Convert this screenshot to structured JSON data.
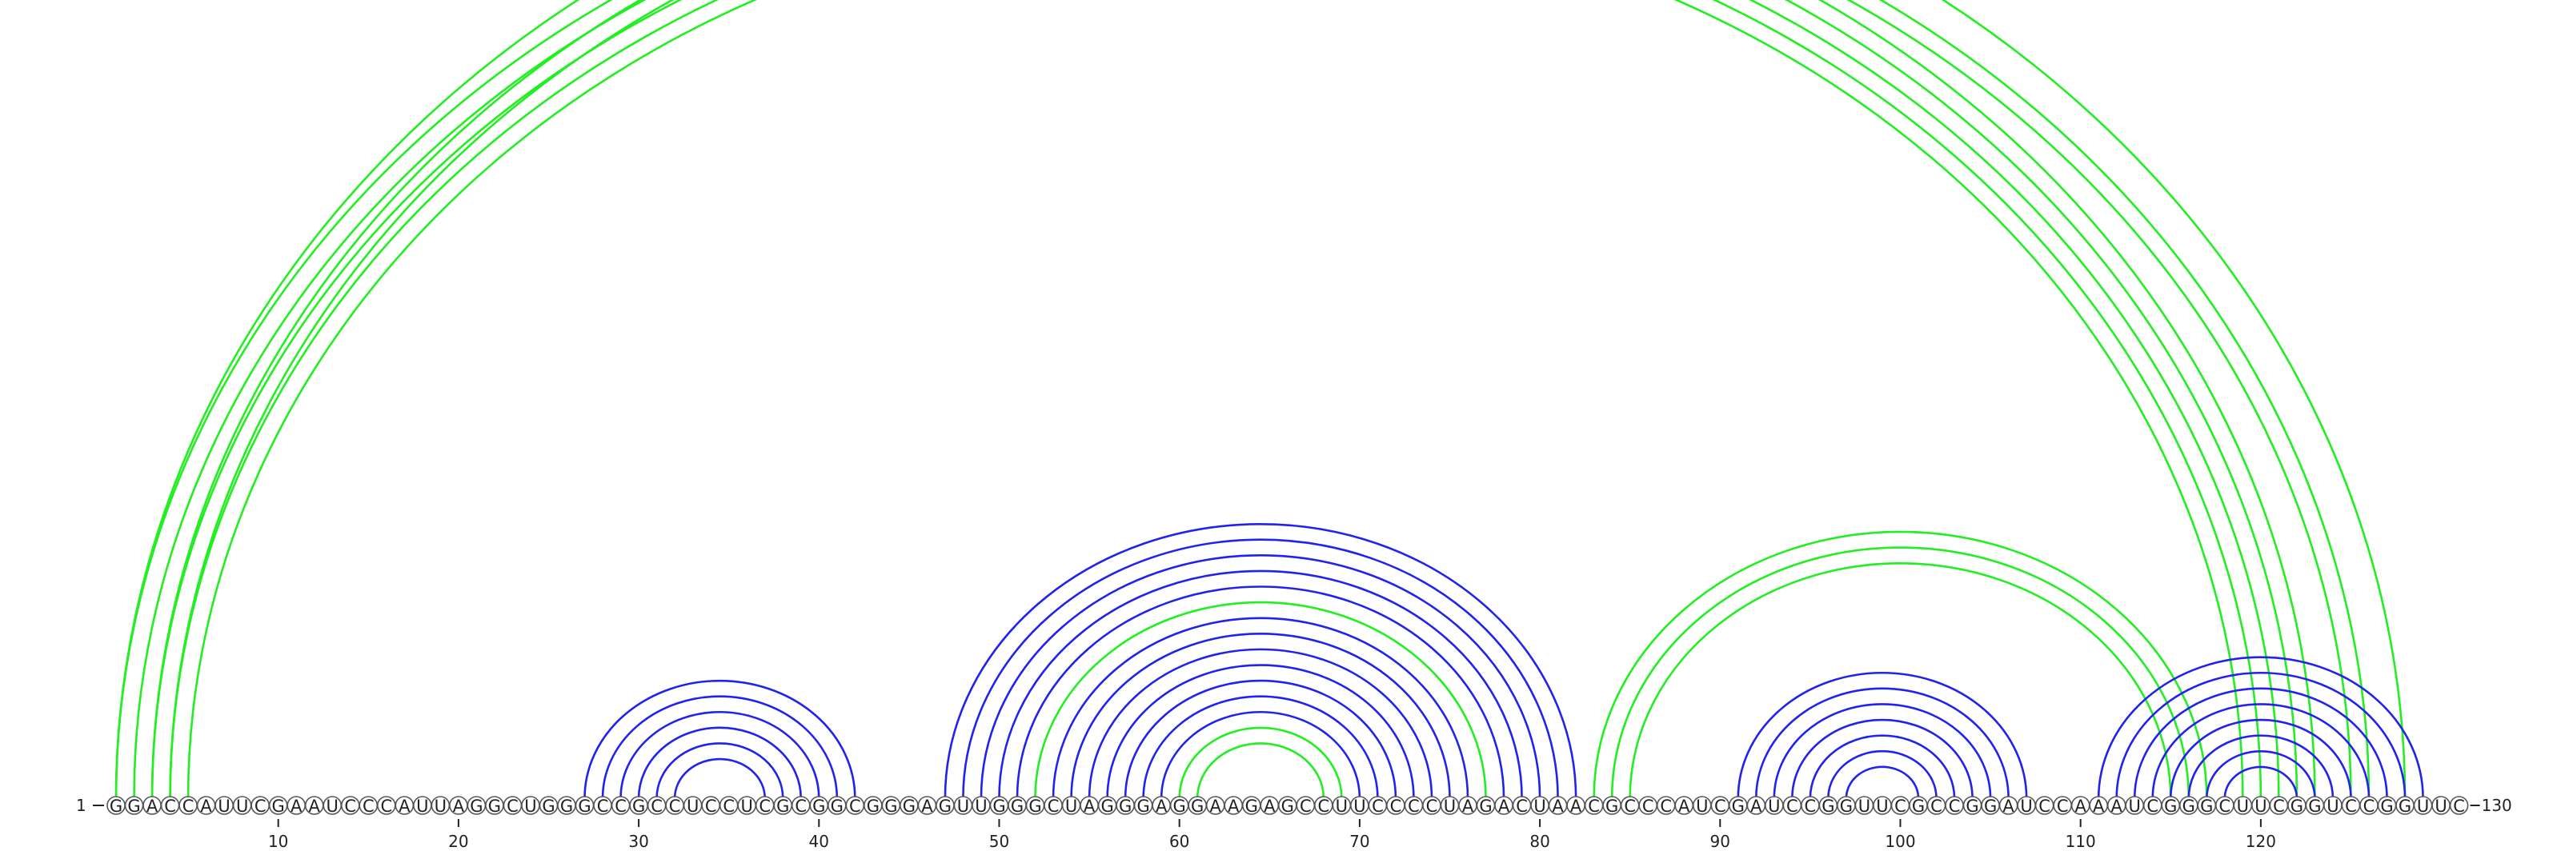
{
  "diagram": {
    "sequence": "GGACCAUUCGAAUCCCAUUAGGCUGGGCCGCCUCCUCGCGGCGGGAGUUGGGCUAGGGAGGAAGAGCCUUCCCCUAGACUAACGCCCAUCGAUCCGGUUCGCCGGAUCCAAAUCGGGCUUCGGUCCGGUUC",
    "start_label": "1",
    "end_label": "130",
    "ticks": [
      "10",
      "20",
      "30",
      "40",
      "50",
      "60",
      "70",
      "80",
      "90",
      "100",
      "110",
      "120"
    ],
    "colors": {
      "green": "#22ee22",
      "blue": "#2222ee",
      "circle_stroke": "#555555"
    },
    "arc_groups": [
      {
        "color": "green",
        "pairs": [
          [
            1,
            123
          ],
          [
            2,
            122
          ],
          [
            3,
            121
          ],
          [
            4,
            120
          ],
          [
            5,
            119
          ]
        ]
      },
      {
        "color": "green",
        "pairs": [
          [
            1,
            128
          ],
          [
            3,
            126
          ],
          [
            4,
            125
          ]
        ]
      },
      {
        "color": "blue",
        "pairs": [
          [
            27,
            42
          ],
          [
            28,
            41
          ],
          [
            29,
            40
          ],
          [
            30,
            39
          ],
          [
            31,
            38
          ],
          [
            32,
            37
          ]
        ]
      },
      {
        "color": "blue",
        "pairs": [
          [
            47,
            82
          ],
          [
            48,
            81
          ],
          [
            49,
            80
          ],
          [
            50,
            79
          ],
          [
            51,
            78
          ],
          [
            53,
            76
          ],
          [
            54,
            75
          ],
          [
            55,
            74
          ],
          [
            56,
            73
          ],
          [
            57,
            72
          ],
          [
            58,
            71
          ],
          [
            59,
            70
          ]
        ]
      },
      {
        "color": "green",
        "pairs": [
          [
            52,
            77
          ],
          [
            60,
            69
          ],
          [
            61,
            68
          ]
        ]
      },
      {
        "color": "green",
        "pairs": [
          [
            83,
            117
          ],
          [
            84,
            116
          ],
          [
            85,
            115
          ]
        ]
      },
      {
        "color": "blue",
        "pairs": [
          [
            91,
            107
          ],
          [
            92,
            106
          ],
          [
            93,
            105
          ],
          [
            94,
            104
          ],
          [
            95,
            103
          ],
          [
            96,
            102
          ],
          [
            97,
            101
          ]
        ]
      },
      {
        "color": "blue",
        "pairs": [
          [
            111,
            129
          ],
          [
            112,
            128
          ],
          [
            113,
            127
          ],
          [
            114,
            126
          ],
          [
            115,
            125
          ],
          [
            116,
            124
          ],
          [
            117,
            123
          ],
          [
            118,
            122
          ]
        ]
      }
    ]
  }
}
